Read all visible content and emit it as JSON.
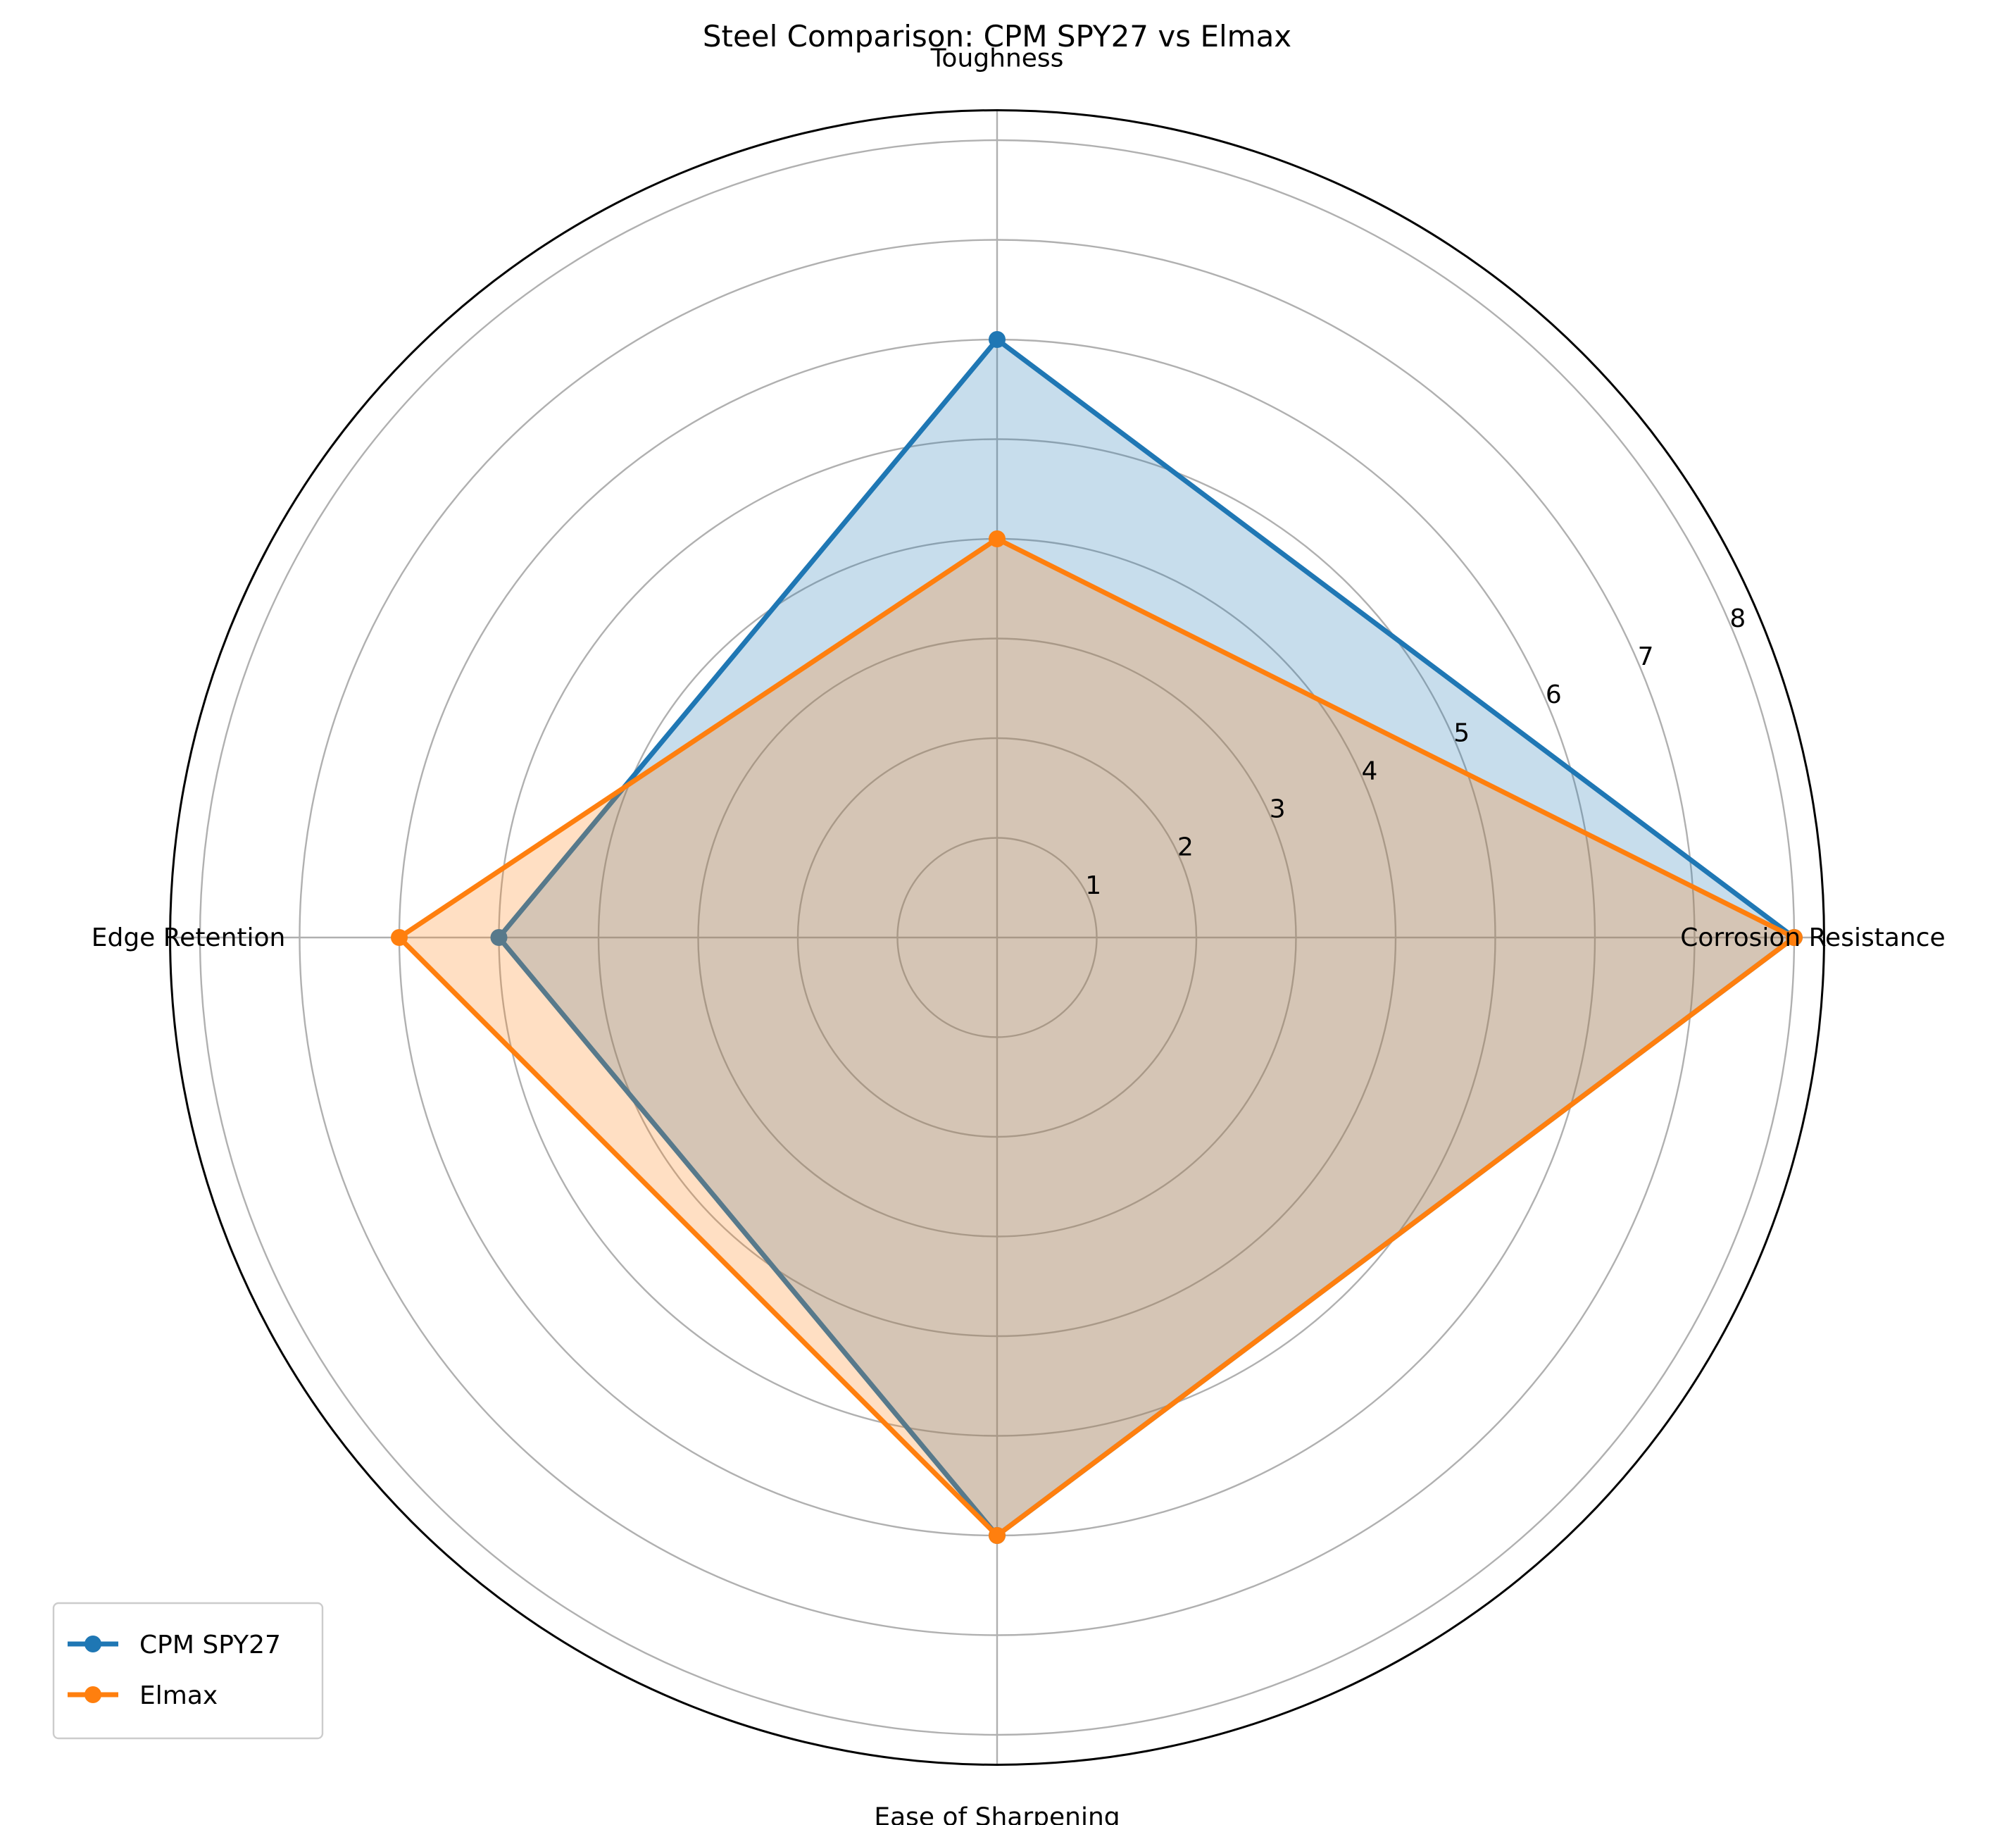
{
  "chart_data": {
    "type": "radar",
    "title": "Steel Comparison: CPM SPY27 vs Elmax",
    "categories": [
      "Corrosion Resistance",
      "Toughness",
      "Edge Retention",
      "Ease of Sharpening"
    ],
    "series": [
      {
        "name": "CPM SPY27",
        "values": [
          8,
          6,
          5,
          6
        ],
        "color": "#1f77b4"
      },
      {
        "name": "Elmax",
        "values": [
          8,
          4,
          6,
          6
        ],
        "color": "#ff7f0e"
      }
    ],
    "radial_ticks": [
      "1",
      "2",
      "3",
      "4",
      "5",
      "6",
      "7",
      "8"
    ],
    "rlim": [
      0,
      8.3
    ],
    "grid": true,
    "legend_position": "lower-left",
    "grid_color": "#b0b0b0"
  }
}
